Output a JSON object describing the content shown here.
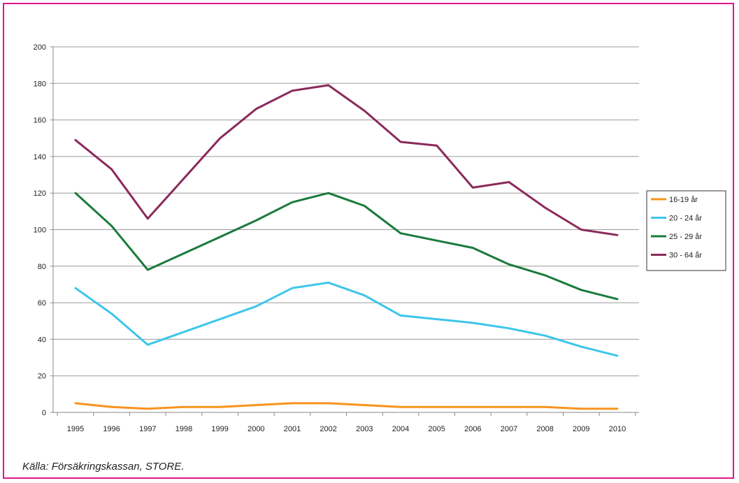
{
  "chart_data": {
    "type": "line",
    "title": "",
    "xlabel": "",
    "ylabel": "",
    "ylim": [
      0,
      200
    ],
    "yticks": [
      0,
      20,
      40,
      60,
      80,
      100,
      120,
      140,
      160,
      180,
      200
    ],
    "categories": [
      "1995",
      "1996",
      "1997",
      "1998",
      "1999",
      "2000",
      "2001",
      "2002",
      "2003",
      "2004",
      "2005",
      "2006",
      "2007",
      "2008",
      "2009",
      "2010"
    ],
    "grid": true,
    "legend_position": "right",
    "series": [
      {
        "name": "16-19 år",
        "color": "#f7941d",
        "values": [
          5,
          3,
          2,
          3,
          3,
          4,
          5,
          5,
          4,
          3,
          3,
          3,
          3,
          3,
          2,
          2
        ]
      },
      {
        "name": "20 - 24 år",
        "color": "#3cc6ea",
        "values": [
          68,
          54,
          37,
          44,
          51,
          58,
          68,
          71,
          64,
          53,
          51,
          49,
          46,
          42,
          36,
          31
        ]
      },
      {
        "name": "25 - 29 år",
        "color": "#1a7a3c",
        "values": [
          120,
          102,
          78,
          87,
          96,
          105,
          115,
          120,
          113,
          98,
          94,
          90,
          81,
          75,
          67,
          62
        ]
      },
      {
        "name": "30 - 64 år",
        "color": "#8b2a5b",
        "values": [
          149,
          133,
          106,
          128,
          150,
          166,
          176,
          179,
          165,
          148,
          146,
          123,
          126,
          112,
          100,
          97
        ]
      }
    ]
  },
  "source": "Källa: Försäkringskassan, STORE."
}
